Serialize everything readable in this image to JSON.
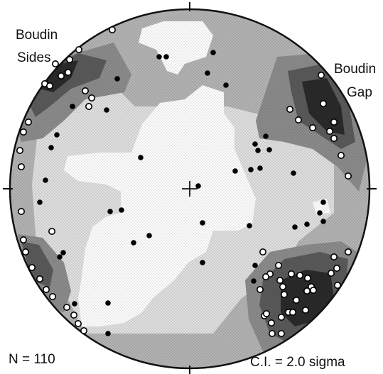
{
  "figure": {
    "annotations": {
      "boudin_sides": [
        "Boudin",
        "Sides"
      ],
      "boudin_gap": [
        "Boudin",
        "Gap"
      ],
      "count": "N =  110",
      "contour_interval": "C.I. = 2.0 sigma"
    }
  },
  "colors": {
    "outline": "#111111",
    "density_level_1": "#e0e0e0",
    "density_level_2": "#b4b4b4",
    "density_level_3": "#8c8c8c",
    "density_level_4": "#5a5a5a",
    "density_level_5": "#2a2a2a",
    "pole_filled": "#000000",
    "pole_open_fill": "#ffffff"
  }
}
